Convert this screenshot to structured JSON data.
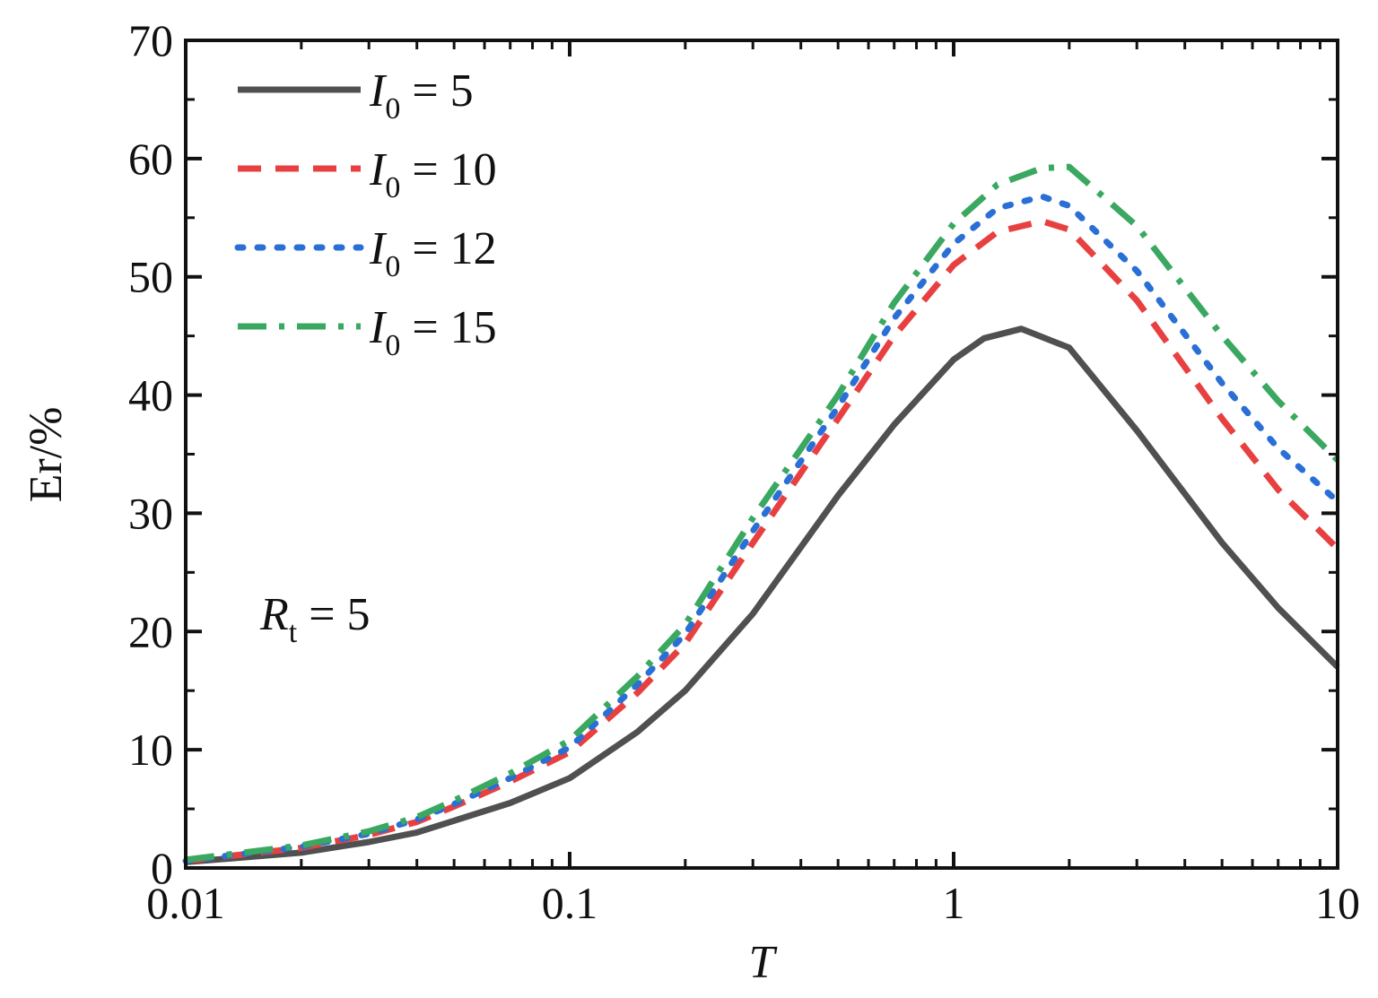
{
  "chart_data": {
    "type": "line",
    "title": "",
    "xlabel": "T",
    "ylabel": "Er/%",
    "xscale": "log",
    "xlim": [
      0.01,
      10
    ],
    "ylim": [
      0,
      70
    ],
    "xticks": [
      0.01,
      0.1,
      1,
      10
    ],
    "xtick_labels": [
      "0.01",
      "0.1",
      "1",
      "10"
    ],
    "yticks": [
      0,
      10,
      20,
      30,
      40,
      50,
      60,
      70
    ],
    "ytick_labels": [
      "0",
      "10",
      "20",
      "30",
      "40",
      "50",
      "60",
      "70"
    ],
    "legend_position": "top-left",
    "annotation": {
      "symbol": "R",
      "subscript": "t",
      "text": " = 5"
    },
    "series": [
      {
        "name": "I0 = 5",
        "label_symbol": "I",
        "label_subscript": "0",
        "label_value": " = 5",
        "color": "#505050",
        "style": "solid",
        "x": [
          0.01,
          0.02,
          0.03,
          0.04,
          0.05,
          0.07,
          0.1,
          0.15,
          0.2,
          0.3,
          0.5,
          0.7,
          1.0,
          1.2,
          1.5,
          2.0,
          3.0,
          5.0,
          7.0,
          10.0
        ],
        "y": [
          0.5,
          1.3,
          2.2,
          3.0,
          4.0,
          5.5,
          7.6,
          11.5,
          15.0,
          21.5,
          31.5,
          37.5,
          43.0,
          44.8,
          45.6,
          44.0,
          37.0,
          27.5,
          22.0,
          17.0
        ]
      },
      {
        "name": "I0 = 10",
        "label_symbol": "I",
        "label_subscript": "0",
        "label_value": " = 10",
        "color": "#e84040",
        "style": "dashed",
        "x": [
          0.01,
          0.02,
          0.03,
          0.04,
          0.05,
          0.07,
          0.1,
          0.15,
          0.2,
          0.3,
          0.5,
          0.7,
          1.0,
          1.3,
          1.7,
          2.0,
          3.0,
          5.0,
          7.0,
          10.0
        ],
        "y": [
          0.6,
          1.7,
          2.8,
          3.9,
          5.2,
          7.3,
          9.8,
          14.8,
          19.0,
          27.5,
          38.0,
          45.0,
          51.0,
          53.8,
          54.7,
          54.0,
          48.0,
          38.0,
          32.0,
          27.0
        ]
      },
      {
        "name": "I0 = 12",
        "label_symbol": "I",
        "label_subscript": "0",
        "label_value": " = 12",
        "color": "#2a6fd6",
        "style": "dotted",
        "x": [
          0.01,
          0.02,
          0.03,
          0.04,
          0.05,
          0.07,
          0.1,
          0.15,
          0.2,
          0.3,
          0.5,
          0.7,
          1.0,
          1.3,
          1.7,
          2.0,
          3.0,
          5.0,
          7.0,
          10.0
        ],
        "y": [
          0.6,
          1.8,
          2.9,
          4.1,
          5.4,
          7.6,
          10.2,
          15.5,
          19.8,
          28.5,
          39.0,
          46.5,
          52.8,
          55.8,
          56.8,
          56.0,
          50.5,
          41.0,
          35.5,
          31.0
        ]
      },
      {
        "name": "I0 = 15",
        "label_symbol": "I",
        "label_subscript": "0",
        "label_value": " = 15",
        "color": "#3aa860",
        "style": "dashdot",
        "x": [
          0.01,
          0.02,
          0.03,
          0.04,
          0.05,
          0.07,
          0.1,
          0.15,
          0.2,
          0.3,
          0.5,
          0.7,
          1.0,
          1.3,
          1.7,
          2.0,
          3.0,
          5.0,
          7.0,
          10.0
        ],
        "y": [
          0.7,
          1.9,
          3.1,
          4.3,
          5.7,
          8.0,
          10.8,
          16.2,
          20.6,
          29.6,
          40.0,
          47.8,
          54.5,
          57.8,
          59.2,
          59.3,
          54.3,
          45.0,
          39.5,
          34.5
        ]
      }
    ]
  }
}
